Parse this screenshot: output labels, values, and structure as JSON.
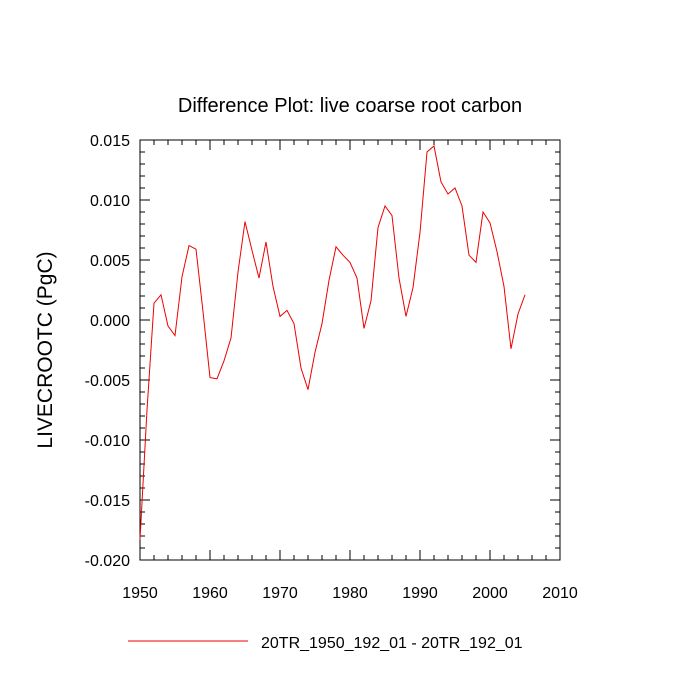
{
  "chart_data": {
    "type": "line",
    "title": "Difference Plot: live coarse root carbon",
    "xlabel": "",
    "ylabel": "LIVECROOTC  (PgC)",
    "xlim": [
      1950,
      2010
    ],
    "ylim": [
      -0.02,
      0.015
    ],
    "x_ticks": [
      1950,
      1960,
      1970,
      1980,
      1990,
      2000,
      2010
    ],
    "x_tick_labels": [
      "1950",
      "1960",
      "1970",
      "1980",
      "1990",
      "2000",
      "2010"
    ],
    "y_ticks": [
      0.015,
      0.01,
      0.005,
      0.0,
      -0.005,
      -0.01,
      -0.015,
      -0.02
    ],
    "y_tick_labels": [
      "0.015",
      "0.010",
      "0.005",
      "0.000",
      "-0.005",
      "-0.010",
      "-0.015",
      "-0.020"
    ],
    "grid": false,
    "legend_position": "bottom",
    "series": [
      {
        "name": "20TR_1950_192_01 - 20TR_192_01",
        "color": "#ee0000",
        "x": [
          1950,
          1951,
          1952,
          1953,
          1954,
          1955,
          1956,
          1957,
          1958,
          1959,
          1960,
          1961,
          1962,
          1963,
          1964,
          1965,
          1966,
          1967,
          1968,
          1969,
          1970,
          1971,
          1972,
          1973,
          1974,
          1975,
          1976,
          1977,
          1978,
          1979,
          1980,
          1981,
          1982,
          1983,
          1984,
          1985,
          1986,
          1987,
          1988,
          1989,
          1990,
          1991,
          1992,
          1993,
          1994,
          1995,
          1996,
          1997,
          1998,
          1999,
          2000,
          2001,
          2002,
          2003,
          2004,
          2005
        ],
        "y": [
          -0.0183,
          -0.0075,
          0.0014,
          0.0021,
          -0.0005,
          -0.0013,
          0.0036,
          0.0062,
          0.0059,
          0.0007,
          -0.0048,
          -0.0049,
          -0.0034,
          -0.0015,
          0.004,
          0.0082,
          0.0058,
          0.0035,
          0.0065,
          0.0028,
          0.0003,
          0.0008,
          -0.0003,
          -0.004,
          -0.0058,
          -0.0027,
          -0.0003,
          0.0033,
          0.0061,
          0.0054,
          0.0048,
          0.0035,
          -0.0007,
          0.0016,
          0.0077,
          0.0095,
          0.0087,
          0.0035,
          0.0003,
          0.0027,
          0.0073,
          0.014,
          0.0145,
          0.0115,
          0.0105,
          0.011,
          0.0095,
          0.0054,
          0.0048,
          0.009,
          0.0081,
          0.0057,
          0.0028,
          -0.0024,
          0.0005,
          0.0021
        ]
      }
    ]
  }
}
